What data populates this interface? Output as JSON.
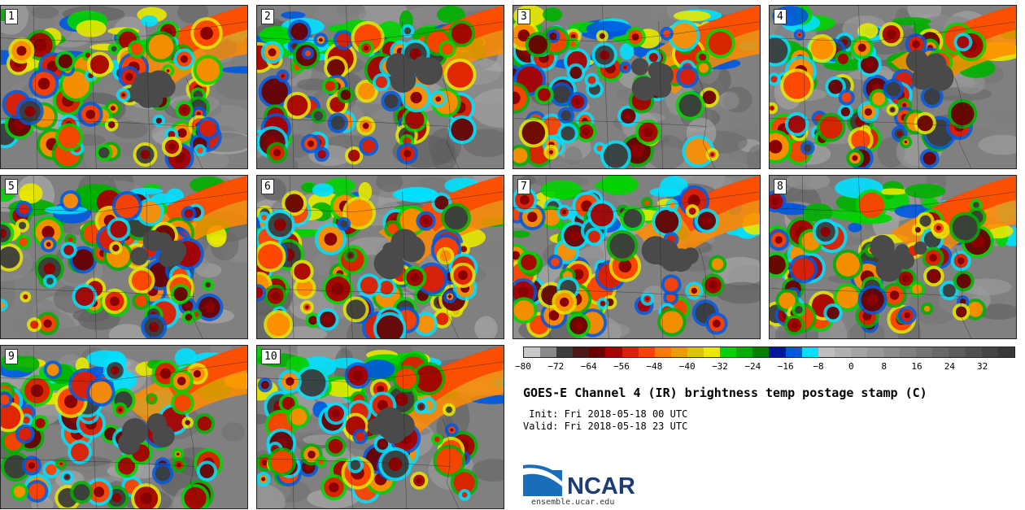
{
  "members": [
    {
      "label": "1",
      "seed": 11
    },
    {
      "label": "2",
      "seed": 23
    },
    {
      "label": "3",
      "seed": 37
    },
    {
      "label": "4",
      "seed": 41
    },
    {
      "label": "5",
      "seed": 53
    },
    {
      "label": "6",
      "seed": 67
    },
    {
      "label": "7",
      "seed": 71
    },
    {
      "label": "8",
      "seed": 83
    },
    {
      "label": "9",
      "seed": 97
    },
    {
      "label": "10",
      "seed": 101
    }
  ],
  "colorbar": {
    "min": -80,
    "max": 40,
    "ticks": [
      "-80",
      "-72",
      "-64",
      "-56",
      "-48",
      "-40",
      "-32",
      "-24",
      "-16",
      "-8",
      "0",
      "8",
      "16",
      "24",
      "32"
    ],
    "colors": [
      "#c8c8c8",
      "#8a8a8a",
      "#3c3c3c",
      "#4a1a1a",
      "#6a0000",
      "#aa0000",
      "#e01e00",
      "#ff4000",
      "#ff7a00",
      "#e89e00",
      "#d8c400",
      "#e8e800",
      "#00d400",
      "#00b000",
      "#008000",
      "#0018a0",
      "#0058e0",
      "#00e0ff",
      "#bebebe",
      "#b0b0b0",
      "#a4a4a4",
      "#989898",
      "#8c8c8c",
      "#808080",
      "#747474",
      "#686868",
      "#5c5c5c",
      "#505050",
      "#444444",
      "#383838"
    ]
  },
  "title": "GOES-E Channel 4 (IR) brightness temp postage stamp (C)",
  "init_line": " Init: Fri 2018-05-18 00 UTC",
  "valid_line": "Valid: Fri 2018-05-18 23 UTC",
  "logo_text": "NCAR",
  "logo_url": "ensemble.ucar.edu"
}
